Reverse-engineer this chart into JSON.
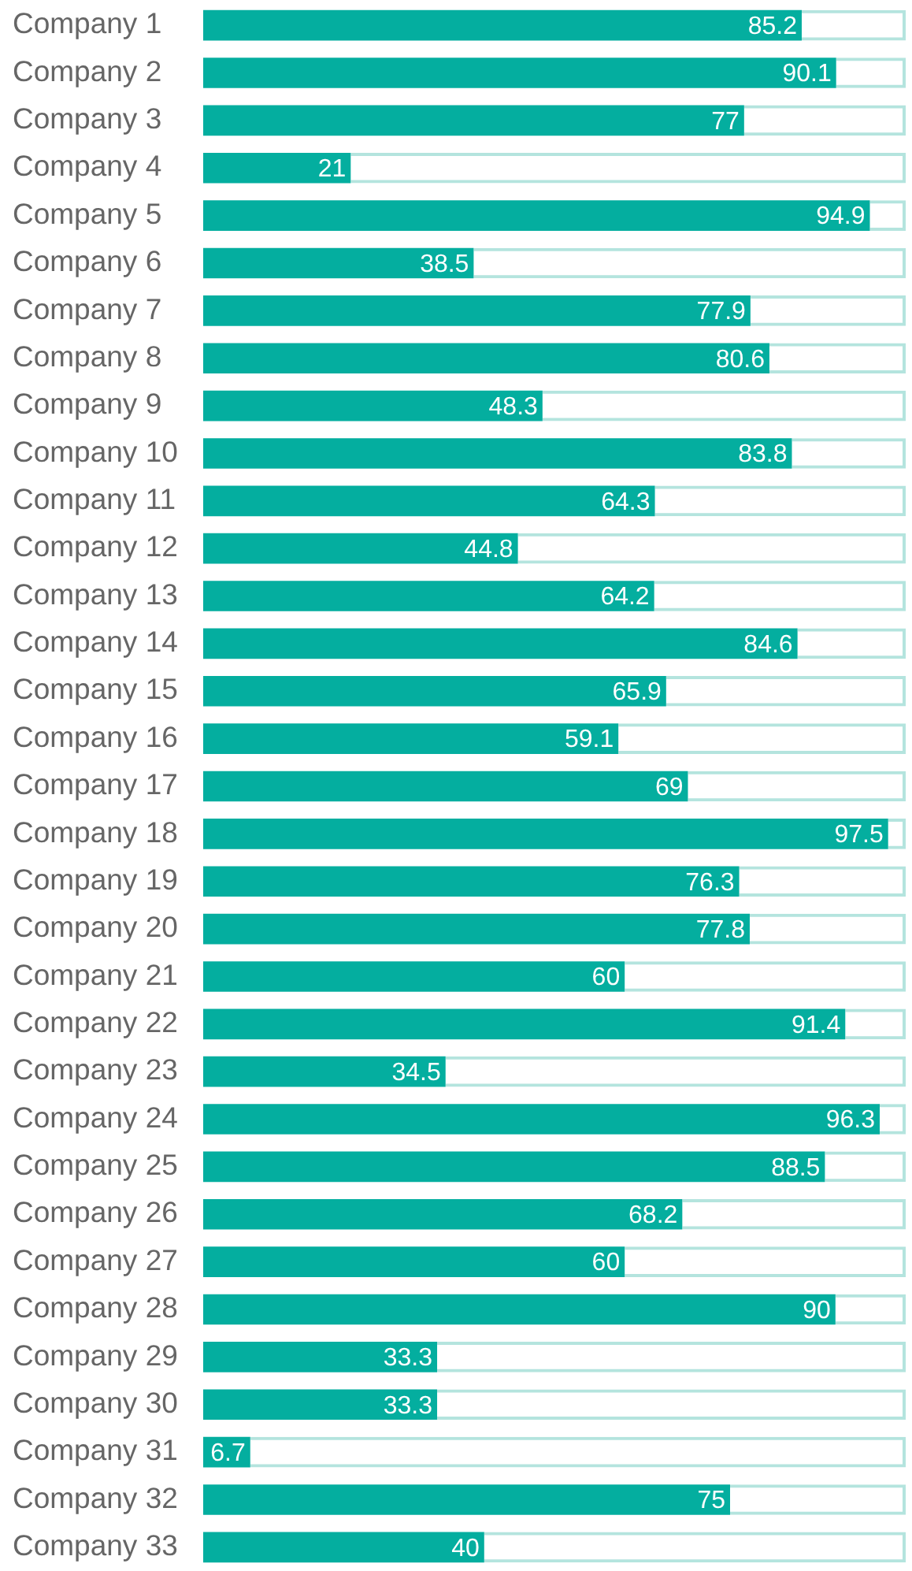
{
  "chart_data": {
    "type": "bar",
    "orientation": "horizontal",
    "stacked": true,
    "tick_labels": "y",
    "xlim": [
      0,
      100
    ],
    "categories": [
      "Company 1",
      "Company 2",
      "Company 3",
      "Company 4",
      "Company 5",
      "Company 6",
      "Company 7",
      "Company 8",
      "Company 9",
      "Company 10",
      "Company 11",
      "Company 12",
      "Company 13",
      "Company 14",
      "Company 15",
      "Company 16",
      "Company 17",
      "Company 18",
      "Company 19",
      "Company 20",
      "Company 21",
      "Company 22",
      "Company 23",
      "Company 24",
      "Company 25",
      "Company 26",
      "Company 27",
      "Company 28",
      "Company 29",
      "Company 30",
      "Company 31",
      "Company 32",
      "Company 33"
    ],
    "series": [
      {
        "color": "#04ae9f",
        "values": [
          85.2,
          90.1,
          77,
          21,
          94.9,
          38.5,
          77.9,
          80.6,
          48.3,
          83.8,
          64.3,
          44.8,
          64.2,
          84.6,
          65.9,
          59.1,
          69,
          97.5,
          76.3,
          77.8,
          60,
          91.4,
          34.5,
          96.3,
          88.5,
          68.2,
          60,
          90,
          33.3,
          33.3,
          6.7,
          75,
          40
        ],
        "value_labels": [
          "85.2",
          "90.1",
          "77",
          "21",
          "94.9",
          "38.5",
          "77.9",
          "80.6",
          "48.3",
          "83.8",
          "64.3",
          "44.8",
          "64.2",
          "84.6",
          "65.9",
          "59.1",
          "69",
          "97.5",
          "76.3",
          "77.8",
          "60",
          "91.4",
          "34.5",
          "96.3",
          "88.5",
          "68.2",
          "60",
          "90",
          "33.3",
          "33.3",
          "6.7",
          "75",
          "40"
        ]
      },
      {
        "color": "#b4e4de",
        "values": [
          14.8,
          9.9,
          23,
          79,
          5.1,
          61.5,
          22.1,
          19.4,
          51.7,
          16.2,
          35.7,
          55.2,
          35.8,
          15.4,
          34.1,
          40.9,
          31,
          2.5,
          23.7,
          22.2,
          40,
          8.6,
          65.5,
          3.7,
          11.5,
          31.8,
          40,
          10,
          66.7,
          66.7,
          93.3,
          25,
          60
        ]
      }
    ]
  }
}
